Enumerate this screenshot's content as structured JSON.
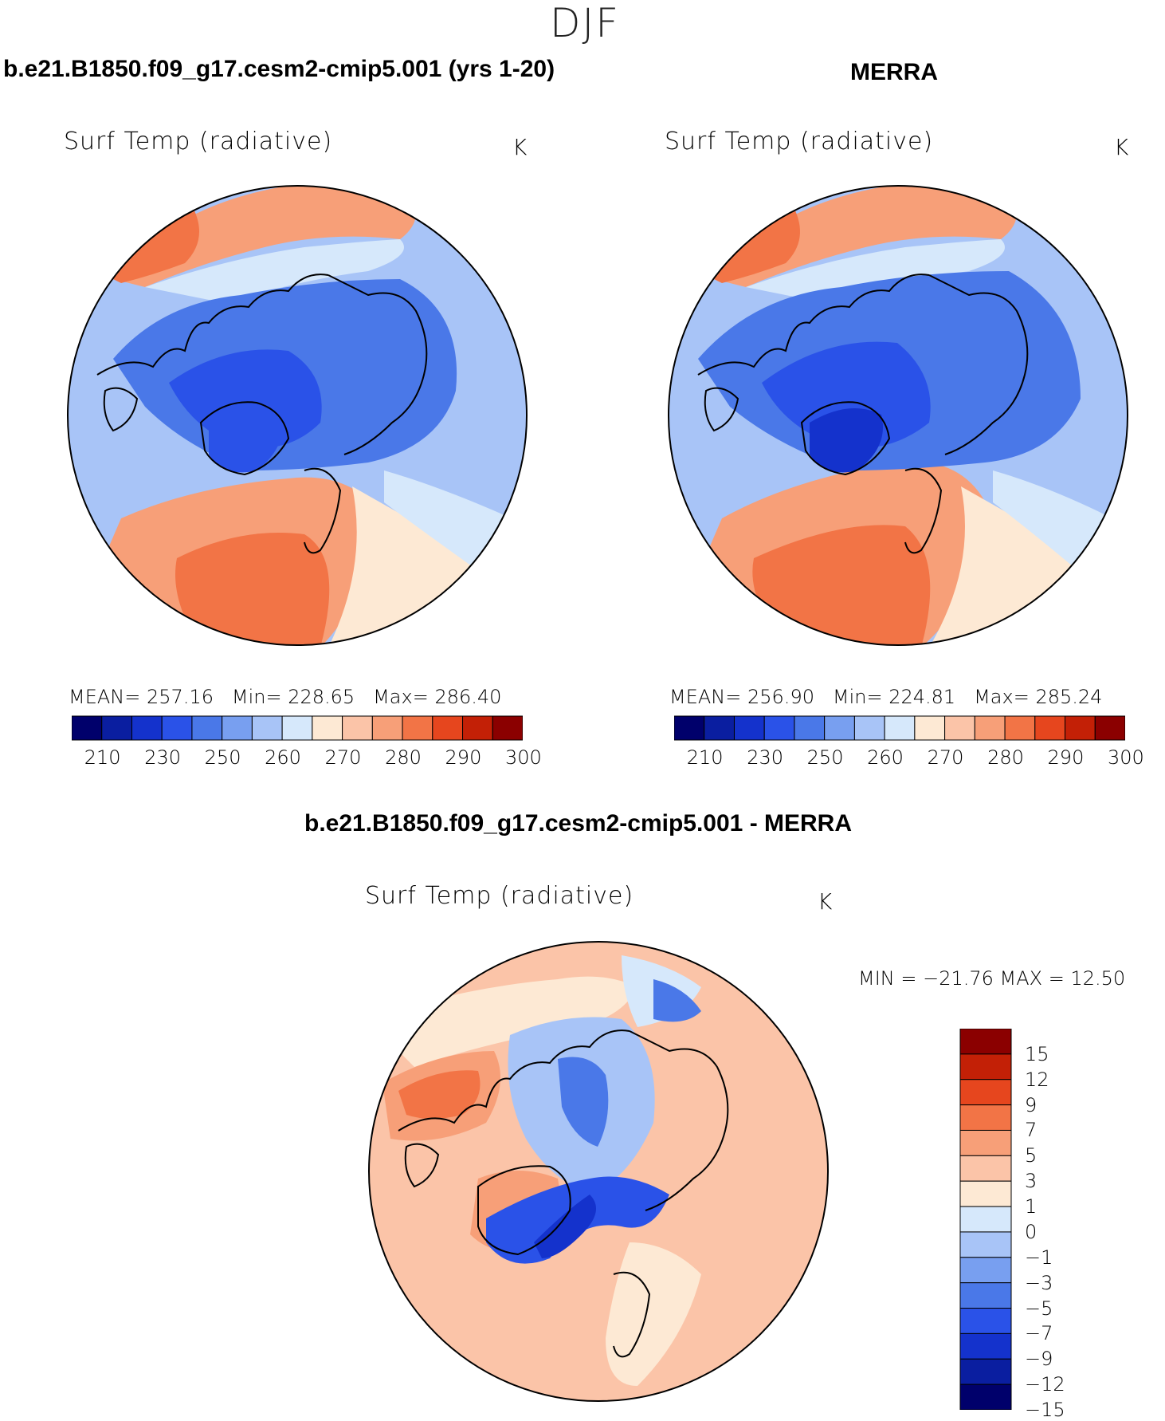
{
  "season": "DJF",
  "panels": {
    "model": {
      "header": "b.e21.B1850.f09_g17.cesm2-cmip5.001 (yrs 1-20)",
      "subtitle": "Surf Temp (radiative)",
      "units": "K",
      "stats": {
        "mean_label": "MEAN=",
        "mean": "257.16",
        "min_label": "Min=",
        "min": "228.65",
        "max_label": "Max=",
        "max": "286.40"
      }
    },
    "obs": {
      "header": "MERRA",
      "subtitle": "Surf Temp (radiative)",
      "units": "K",
      "stats": {
        "mean_label": "MEAN=",
        "mean": "256.90",
        "min_label": "Min=",
        "min": "224.81",
        "max_label": "Max=",
        "max": "285.24"
      }
    },
    "diff": {
      "header": "b.e21.B1850.f09_g17.cesm2-cmip5.001 - MERRA",
      "subtitle": "Surf Temp (radiative)",
      "units": "K",
      "minmax": "MIN = −21.76 MAX =   12.50"
    }
  },
  "abs_colorbar": {
    "colors": [
      "#00006b",
      "#0a1ea0",
      "#1432cc",
      "#2a52e8",
      "#4a78e8",
      "#789ff0",
      "#a8c4f7",
      "#d6e8fb",
      "#fde9d4",
      "#fbc4a8",
      "#f79f78",
      "#f27446",
      "#e6461e",
      "#c32006",
      "#8b0000"
    ],
    "ticks": [
      "210",
      "230",
      "250",
      "260",
      "270",
      "280",
      "290",
      "300"
    ]
  },
  "diff_colorbar": {
    "colors": [
      "#00006b",
      "#0a1ea0",
      "#1432cc",
      "#2a52e8",
      "#4a78e8",
      "#789ff0",
      "#a8c4f7",
      "#d6e8fb",
      "#fde9d4",
      "#fbc4a8",
      "#f79f78",
      "#f27446",
      "#e6461e",
      "#c32006",
      "#8b0000"
    ],
    "ticks": [
      "15",
      "12",
      "9",
      "7",
      "5",
      "3",
      "1",
      "0",
      "−1",
      "−3",
      "−5",
      "−7",
      "−9",
      "−12",
      "−15"
    ]
  },
  "map_colors": {
    "warm_strong": "#f27446",
    "warm": "#f79f78",
    "warm_light": "#fbc4a8",
    "neutral_warm": "#fde9d4",
    "neutral_cool": "#d6e8fb",
    "cool_light": "#a8c4f7",
    "cool": "#4a78e8",
    "cool_strong": "#2a52e8",
    "cool_deep": "#1432cc"
  }
}
